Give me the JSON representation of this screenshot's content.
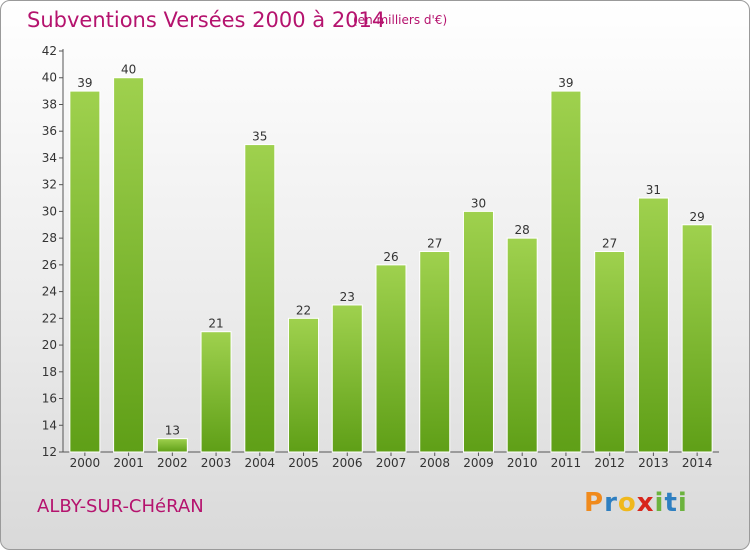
{
  "header": {
    "title": "Subventions Versées 2000 à 2014",
    "subtitle": "(en milliers d'€)"
  },
  "footer": {
    "place": "ALBY-SUR-CHéRAN",
    "brand_letters": [
      "P",
      "r",
      "o",
      "x",
      "i",
      "t",
      "i"
    ],
    "brand_colors": [
      "#f08a1c",
      "#2e7fc1",
      "#f0b81c",
      "#d8261c",
      "#6cb33e",
      "#2e7fc1",
      "#6cb33e"
    ]
  },
  "chart_data": {
    "type": "bar",
    "title": "Subventions Versées 2000 à 2014",
    "subtitle": "(en milliers d'€)",
    "categories": [
      "2000",
      "2001",
      "2002",
      "2003",
      "2004",
      "2005",
      "2006",
      "2007",
      "2008",
      "2009",
      "2010",
      "2011",
      "2012",
      "2013",
      "2014"
    ],
    "values": [
      39,
      40,
      13,
      21,
      35,
      22,
      23,
      26,
      27,
      30,
      28,
      39,
      27,
      31,
      29
    ],
    "ylim": [
      12,
      42
    ],
    "yticks": [
      12,
      14,
      16,
      18,
      20,
      22,
      24,
      26,
      28,
      30,
      32,
      34,
      36,
      38,
      40,
      42
    ],
    "grid": false,
    "legend": "none",
    "bar_color_top": "#9fd14e",
    "bar_color_bottom": "#5f9f17"
  }
}
